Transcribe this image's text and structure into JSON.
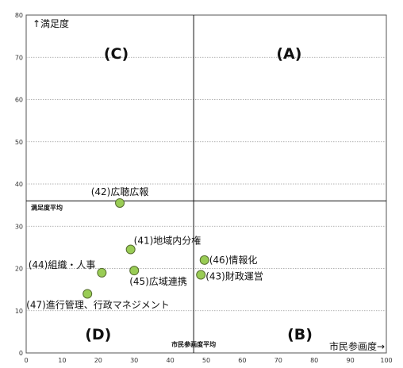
{
  "chart_data": {
    "type": "scatter",
    "title": "",
    "xlabel": "市民参画度→",
    "ylabel": "↑満足度",
    "xlim": [
      0,
      100
    ],
    "ylim": [
      0,
      80
    ],
    "xticks": [
      0,
      10,
      20,
      30,
      40,
      50,
      60,
      70,
      80,
      90,
      100
    ],
    "yticks": [
      0,
      10,
      20,
      30,
      40,
      50,
      60,
      70,
      80
    ],
    "grid": true,
    "point_color": "#99cc55",
    "point_stroke": "#556b2f",
    "avg_x": 46.5,
    "avg_y": 36.0,
    "avg_x_label": "市民参画度平均",
    "avg_y_label": "満足度平均",
    "quadrants": [
      {
        "label": "(A)",
        "x": 73,
        "y": 71
      },
      {
        "label": "(B)",
        "x": 76,
        "y": 4.5
      },
      {
        "label": "(C)",
        "x": 25,
        "y": 71
      },
      {
        "label": "(D)",
        "x": 20,
        "y": 4.5
      }
    ],
    "points": [
      {
        "label": "(42)広聴広報",
        "x": 26.0,
        "y": 35.5
      },
      {
        "label": "(41)地域内分権",
        "x": 29.0,
        "y": 24.5
      },
      {
        "label": "(44)組織・人事",
        "x": 21.0,
        "y": 19.0
      },
      {
        "label": "(45)広域連携",
        "x": 30.0,
        "y": 19.5
      },
      {
        "label": "(46)情報化",
        "x": 49.5,
        "y": 22.0
      },
      {
        "label": "(43)財政運営",
        "x": 48.5,
        "y": 18.5
      },
      {
        "label": "(47)進行管理、行政マネジメント",
        "x": 17.0,
        "y": 14.0
      }
    ]
  }
}
